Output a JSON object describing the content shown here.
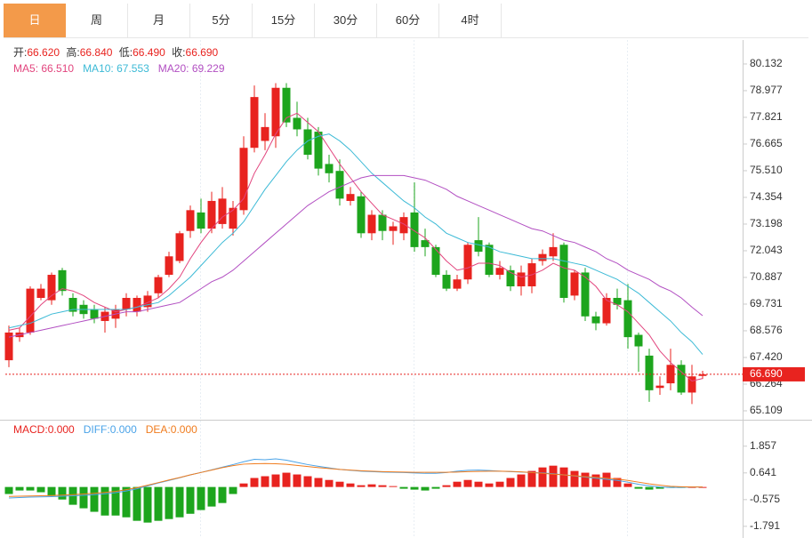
{
  "tabs": [
    "日",
    "周",
    "月",
    "5分",
    "15分",
    "30分",
    "60分",
    "4时"
  ],
  "ohlc_info": [
    {
      "label": "开:",
      "value": "66.620"
    },
    {
      "label": "高:",
      "value": "66.840"
    },
    {
      "label": "低:",
      "value": "66.490"
    },
    {
      "label": "收:",
      "value": "66.690"
    }
  ],
  "chart_data": [
    {
      "type": "candlestick",
      "up_color": "#e8231f",
      "down_color": "#1da51d",
      "open": [
        67.3,
        68.3,
        68.5,
        70.0,
        69.9,
        71.2,
        70.0,
        69.7,
        69.5,
        69.0,
        69.1,
        69.5,
        69.4,
        69.6,
        70.2,
        71.0,
        71.6,
        72.9,
        73.7,
        73.0,
        73.2,
        73.0,
        73.8,
        76.5,
        76.8,
        77.0,
        79.1,
        77.8,
        77.3,
        77.2,
        75.8,
        75.5,
        74.2,
        74.4,
        72.8,
        73.6,
        72.9,
        72.8,
        73.7,
        72.5,
        72.2,
        71.0,
        70.4,
        70.8,
        72.5,
        72.3,
        71.0,
        71.2,
        70.5,
        70.5,
        71.6,
        71.8,
        72.3,
        70.1,
        71.1,
        69.2,
        68.9,
        70.0,
        69.9,
        68.4,
        67.5,
        66.1,
        66.3,
        67.1,
        65.9,
        66.62
      ],
      "high": [
        68.8,
        68.7,
        70.5,
        70.6,
        71.1,
        71.3,
        70.2,
        69.9,
        69.7,
        69.6,
        69.7,
        70.2,
        70.1,
        70.3,
        71.0,
        72.0,
        72.9,
        74.0,
        74.3,
        74.6,
        74.8,
        74.2,
        77.0,
        79.2,
        78.0,
        79.3,
        79.3,
        78.5,
        77.8,
        77.4,
        76.2,
        76.0,
        74.8,
        74.6,
        73.8,
        73.8,
        73.3,
        73.7,
        75.0,
        73.0,
        72.3,
        71.2,
        71.0,
        72.4,
        73.5,
        72.4,
        71.6,
        71.4,
        71.4,
        71.7,
        72.1,
        72.8,
        72.4,
        71.2,
        71.3,
        69.4,
        70.2,
        70.4,
        70.6,
        68.5,
        67.8,
        66.6,
        67.8,
        67.3,
        67.1,
        66.84
      ],
      "low": [
        67.0,
        68.1,
        68.4,
        69.9,
        69.7,
        70.1,
        69.2,
        69.1,
        68.9,
        68.5,
        68.7,
        69.2,
        69.2,
        69.4,
        70.0,
        70.9,
        71.5,
        72.6,
        72.8,
        72.8,
        73.0,
        72.7,
        73.6,
        76.3,
        76.4,
        76.5,
        77.4,
        77.0,
        76.0,
        75.3,
        75.0,
        74.0,
        74.0,
        72.6,
        72.5,
        72.5,
        72.3,
        72.5,
        72.0,
        71.8,
        70.9,
        70.3,
        70.3,
        70.6,
        71.8,
        70.9,
        70.8,
        70.3,
        70.1,
        70.2,
        71.4,
        71.6,
        69.8,
        69.9,
        69.0,
        68.6,
        68.8,
        69.5,
        67.8,
        66.8,
        65.5,
        65.8,
        66.0,
        65.8,
        65.4,
        66.49
      ],
      "close": [
        68.5,
        68.5,
        70.4,
        70.4,
        71.0,
        70.3,
        69.4,
        69.3,
        69.1,
        69.4,
        69.5,
        70.0,
        70.0,
        70.1,
        70.9,
        71.8,
        72.8,
        73.8,
        73.0,
        74.2,
        74.3,
        73.9,
        76.5,
        78.7,
        77.4,
        79.1,
        77.6,
        77.3,
        76.2,
        75.6,
        75.4,
        74.3,
        74.5,
        72.8,
        73.6,
        72.9,
        73.1,
        73.5,
        72.2,
        72.2,
        71.0,
        70.4,
        70.8,
        72.3,
        72.0,
        71.0,
        71.3,
        70.5,
        71.1,
        71.5,
        71.9,
        72.2,
        70.0,
        71.1,
        69.2,
        68.9,
        70.0,
        69.7,
        68.3,
        67.9,
        66.0,
        66.2,
        67.1,
        65.9,
        66.6,
        66.69
      ],
      "legend_separator": ": ",
      "series": [
        {
          "name": "MA5",
          "legend_value": "66.510",
          "color": "#e2457e",
          "values": [
            68.6,
            68.7,
            69.2,
            69.7,
            70.1,
            70.4,
            70.3,
            70.1,
            69.8,
            69.6,
            69.4,
            69.5,
            69.6,
            69.8,
            70.0,
            70.4,
            70.9,
            71.7,
            72.4,
            73.0,
            73.5,
            73.8,
            74.3,
            75.4,
            76.2,
            77.1,
            77.8,
            78.0,
            77.6,
            77.2,
            76.5,
            75.8,
            75.2,
            74.6,
            74.1,
            73.6,
            73.4,
            73.2,
            72.9,
            72.6,
            72.1,
            71.6,
            71.2,
            71.3,
            71.5,
            71.5,
            71.4,
            71.1,
            70.9,
            71.0,
            71.2,
            71.5,
            71.3,
            71.2,
            70.9,
            70.5,
            69.9,
            69.7,
            69.4,
            68.9,
            68.4,
            67.7,
            67.2,
            66.8,
            66.4,
            66.51
          ]
        },
        {
          "name": "MA10",
          "legend_value": "67.553",
          "color": "#3cbad6",
          "values": [
            68.7,
            68.8,
            68.9,
            69.1,
            69.3,
            69.4,
            69.5,
            69.5,
            69.5,
            69.5,
            69.5,
            69.5,
            69.6,
            69.7,
            69.8,
            70.1,
            70.5,
            70.9,
            71.4,
            71.9,
            72.4,
            72.8,
            73.3,
            74.0,
            74.7,
            75.3,
            75.9,
            76.4,
            76.8,
            77.0,
            77.1,
            76.8,
            76.4,
            75.9,
            75.4,
            75.0,
            74.6,
            74.2,
            73.9,
            73.5,
            73.2,
            72.8,
            72.6,
            72.4,
            72.3,
            72.2,
            72.0,
            71.9,
            71.8,
            71.7,
            71.7,
            71.7,
            71.6,
            71.5,
            71.4,
            71.2,
            71.0,
            70.8,
            70.5,
            70.2,
            69.8,
            69.4,
            69.0,
            68.5,
            68.1,
            67.553
          ]
        },
        {
          "name": "MA20",
          "legend_value": "69.229",
          "color": "#b24fc2",
          "values": [
            68.3,
            68.4,
            68.5,
            68.6,
            68.7,
            68.8,
            68.9,
            69.0,
            69.1,
            69.2,
            69.3,
            69.4,
            69.4,
            69.5,
            69.6,
            69.7,
            69.8,
            70.1,
            70.4,
            70.7,
            70.9,
            71.2,
            71.6,
            72.0,
            72.4,
            72.8,
            73.2,
            73.6,
            74.0,
            74.3,
            74.6,
            74.8,
            75.0,
            75.2,
            75.3,
            75.3,
            75.3,
            75.3,
            75.2,
            75.1,
            74.9,
            74.7,
            74.4,
            74.2,
            74.0,
            73.8,
            73.6,
            73.4,
            73.2,
            73.0,
            72.9,
            72.7,
            72.5,
            72.4,
            72.2,
            72.0,
            71.7,
            71.5,
            71.2,
            71.0,
            70.8,
            70.5,
            70.3,
            70.0,
            69.6,
            69.229
          ]
        }
      ],
      "last_price": {
        "value": 66.69,
        "label": "66.690"
      },
      "last_color": "#e8231f",
      "ylim": [
        64.8,
        81.17
      ],
      "yticks": [
        80.132,
        78.977,
        77.821,
        76.665,
        {
          "value": 75.51,
          "label": "75.510"
        },
        74.354,
        73.198,
        72.043,
        70.887,
        69.731,
        68.576,
        {
          "value": 67.42,
          "label": "67.420"
        },
        66.264,
        65.109
      ]
    },
    {
      "type": "macd",
      "legend_separator": ":",
      "histogram": {
        "name": "MACD",
        "legend_value": "0.000",
        "color": "#e8231f",
        "up_color": "#e8231f",
        "down_color": "#1da51d",
        "values": [
          -0.32,
          -0.16,
          -0.16,
          -0.24,
          -0.41,
          -0.57,
          -0.81,
          -0.97,
          -1.13,
          -1.3,
          -1.3,
          -1.38,
          -1.54,
          -1.62,
          -1.54,
          -1.46,
          -1.38,
          -1.22,
          -1.05,
          -0.89,
          -0.73,
          -0.32,
          0.16,
          0.41,
          0.49,
          0.57,
          0.65,
          0.57,
          0.49,
          0.41,
          0.32,
          0.24,
          0.16,
          0.08,
          0.12,
          0.08,
          0.04,
          -0.08,
          -0.12,
          -0.16,
          -0.08,
          0.08,
          0.24,
          0.32,
          0.24,
          0.16,
          0.24,
          0.41,
          0.57,
          0.73,
          0.89,
          0.97,
          0.89,
          0.73,
          0.65,
          0.57,
          0.65,
          0.41,
          0.16,
          -0.08,
          -0.12,
          -0.08,
          -0.04,
          -0.04,
          0,
          0
        ]
      },
      "series": [
        {
          "name": "DIFF",
          "legend_value": "0.000",
          "color": "#4aa3e8",
          "values": [
            -0.5,
            -0.48,
            -0.46,
            -0.45,
            -0.44,
            -0.42,
            -0.4,
            -0.38,
            -0.35,
            -0.31,
            -0.26,
            -0.18,
            -0.08,
            0.05,
            0.18,
            0.3,
            0.42,
            0.55,
            0.66,
            0.78,
            0.9,
            1.02,
            1.15,
            1.26,
            1.24,
            1.28,
            1.22,
            1.12,
            1.02,
            0.94,
            0.87,
            0.8,
            0.76,
            0.72,
            0.7,
            0.68,
            0.67,
            0.66,
            0.64,
            0.62,
            0.62,
            0.66,
            0.72,
            0.76,
            0.77,
            0.75,
            0.72,
            0.7,
            0.68,
            0.66,
            0.64,
            0.6,
            0.55,
            0.5,
            0.45,
            0.4,
            0.35,
            0.3,
            0.22,
            0.12,
            0.05,
            0,
            -0.02,
            -0.02,
            0,
            0
          ]
        },
        {
          "name": "DEA",
          "legend_value": "0.000",
          "color": "#f07c1e",
          "values": [
            -0.43,
            -0.42,
            -0.41,
            -0.4,
            -0.39,
            -0.37,
            -0.35,
            -0.32,
            -0.29,
            -0.25,
            -0.2,
            -0.12,
            -0.03,
            0.08,
            0.2,
            0.32,
            0.43,
            0.55,
            0.66,
            0.77,
            0.88,
            0.97,
            1.04,
            1.06,
            1.07,
            1.06,
            1.03,
            0.98,
            0.93,
            0.88,
            0.84,
            0.8,
            0.77,
            0.74,
            0.72,
            0.7,
            0.69,
            0.68,
            0.67,
            0.67,
            0.67,
            0.67,
            0.68,
            0.7,
            0.71,
            0.72,
            0.72,
            0.71,
            0.69,
            0.66,
            0.62,
            0.58,
            0.55,
            0.51,
            0.47,
            0.44,
            0.4,
            0.36,
            0.3,
            0.22,
            0.14,
            0.08,
            0.03,
            0.01,
            0,
            0
          ]
        }
      ],
      "ylim": [
        -2.12,
        2.94
      ],
      "yticks": [
        1.857,
        0.641,
        -0.575,
        -1.791
      ]
    }
  ]
}
